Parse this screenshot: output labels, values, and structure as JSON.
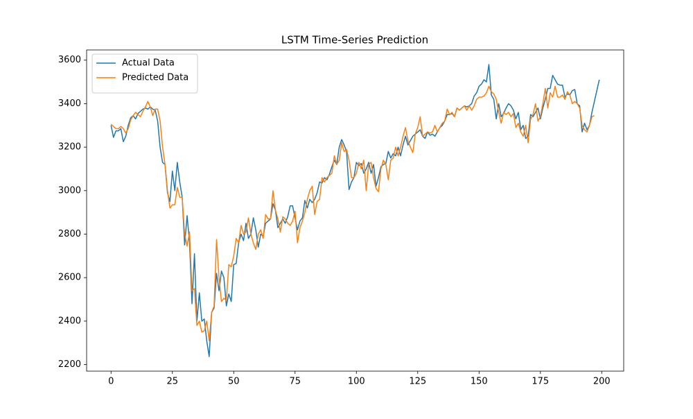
{
  "chart_data": {
    "type": "line",
    "title": "LSTM Time-Series Prediction",
    "x": [
      0,
      1,
      2,
      3,
      4,
      5,
      6,
      7,
      8,
      9,
      10,
      11,
      12,
      13,
      14,
      15,
      16,
      17,
      18,
      19,
      20,
      21,
      22,
      23,
      24,
      25,
      26,
      27,
      28,
      29,
      30,
      31,
      32,
      33,
      34,
      35,
      36,
      37,
      38,
      39,
      40,
      41,
      42,
      43,
      44,
      45,
      46,
      47,
      48,
      49,
      50,
      51,
      52,
      53,
      54,
      55,
      56,
      57,
      58,
      59,
      60,
      61,
      62,
      63,
      64,
      65,
      66,
      67,
      68,
      69,
      70,
      71,
      72,
      73,
      74,
      75,
      76,
      77,
      78,
      79,
      80,
      81,
      82,
      83,
      84,
      85,
      86,
      87,
      88,
      89,
      90,
      91,
      92,
      93,
      94,
      95,
      96,
      97,
      98,
      99,
      100,
      101,
      102,
      103,
      104,
      105,
      106,
      107,
      108,
      109,
      110,
      111,
      112,
      113,
      114,
      115,
      116,
      117,
      118,
      119,
      120,
      121,
      122,
      123,
      124,
      125,
      126,
      127,
      128,
      129,
      130,
      131,
      132,
      133,
      134,
      135,
      136,
      137,
      138,
      139,
      140,
      141,
      142,
      143,
      144,
      145,
      146,
      147,
      148,
      149,
      150,
      151,
      152,
      153,
      154,
      155,
      156,
      157,
      158,
      159,
      160,
      161,
      162,
      163,
      164,
      165,
      166,
      167,
      168,
      169,
      170,
      171,
      172,
      173,
      174,
      175,
      176,
      177,
      178,
      179,
      180,
      181,
      182,
      183,
      184,
      185,
      186,
      187,
      188,
      189,
      190,
      191,
      192,
      193,
      194,
      195,
      196,
      197,
      198,
      199
    ],
    "series": [
      {
        "name": "Actual Data",
        "color": "#1f77b4",
        "values": [
          3300,
          3245,
          3275,
          3275,
          3285,
          3225,
          3250,
          3300,
          3335,
          3345,
          3330,
          3355,
          3365,
          3375,
          3380,
          3375,
          3385,
          3375,
          3370,
          3320,
          3200,
          3130,
          3120,
          2990,
          2950,
          3090,
          3000,
          3130,
          3040,
          2970,
          2750,
          2885,
          2760,
          2480,
          2710,
          2400,
          2530,
          2400,
          2410,
          2310,
          2237,
          2440,
          2460,
          2620,
          2540,
          2630,
          2600,
          2470,
          2525,
          2490,
          2660,
          2665,
          2760,
          2800,
          2770,
          2850,
          2780,
          2800,
          2875,
          2820,
          2740,
          2800,
          2790,
          2850,
          2860,
          2870,
          2940,
          2910,
          2830,
          2850,
          2870,
          2850,
          2880,
          2930,
          2930,
          2875,
          2820,
          2860,
          2875,
          2955,
          2920,
          2960,
          2945,
          2960,
          2990,
          3040,
          3035,
          3060,
          3050,
          3075,
          3110,
          3140,
          3120,
          3200,
          3235,
          3210,
          3180,
          3005,
          3040,
          3060,
          3130,
          3115,
          3125,
          3080,
          3100,
          3130,
          3080,
          3120,
          3020,
          3060,
          3110,
          3120,
          3125,
          3180,
          3150,
          3170,
          3160,
          3200,
          3160,
          3210,
          3250,
          3210,
          3230,
          3250,
          3260,
          3270,
          3280,
          3250,
          3240,
          3270,
          3255,
          3260,
          3250,
          3270,
          3290,
          3300,
          3320,
          3350,
          3350,
          3355,
          3340,
          3380,
          3370,
          3380,
          3390,
          3385,
          3390,
          3400,
          3435,
          3450,
          3480,
          3490,
          3510,
          3500,
          3580,
          3440,
          3420,
          3330,
          3400,
          3340,
          3355,
          3380,
          3400,
          3390,
          3370,
          3330,
          3360,
          3280,
          3300,
          3240,
          3250,
          3350,
          3340,
          3360,
          3380,
          3330,
          3380,
          3420,
          3470,
          3470,
          3530,
          3510,
          3490,
          3485,
          3485,
          3430,
          3445,
          3440,
          3460,
          3465,
          3400,
          3390,
          3270,
          3310,
          3280,
          3300,
          3360,
          3410,
          3460,
          3510
        ]
      },
      {
        "name": "Predicted Data",
        "color": "#ff7f0e",
        "values": [
          3305,
          3295,
          3285,
          3285,
          3295,
          3285,
          3265,
          3285,
          3325,
          3345,
          3360,
          3350,
          3340,
          3365,
          3385,
          3410,
          3385,
          3345,
          3375,
          3375,
          3320,
          3200,
          3120,
          3000,
          2920,
          2935,
          2935,
          3015,
          2970,
          2970,
          2800,
          2745,
          2810,
          2540,
          2550,
          2380,
          2400,
          2350,
          2355,
          2400,
          2310,
          2440,
          2470,
          2775,
          2600,
          2490,
          2505,
          2495,
          2660,
          2650,
          2700,
          2780,
          2760,
          2840,
          2800,
          2810,
          2875,
          2800,
          2760,
          2730,
          2800,
          2820,
          2780,
          2890,
          2870,
          2870,
          3000,
          2910,
          2870,
          2810,
          2880,
          2870,
          2850,
          2840,
          2860,
          2905,
          2760,
          2830,
          2860,
          2900,
          2960,
          3000,
          3020,
          2890,
          2950,
          2960,
          3060,
          3040,
          3060,
          3070,
          3080,
          3160,
          3120,
          3140,
          3220,
          3180,
          3190,
          3140,
          3060,
          3060,
          3080,
          3130,
          3100,
          3140,
          3000,
          3120,
          3130,
          3060,
          3010,
          2995,
          3100,
          3140,
          3120,
          3050,
          3140,
          3150,
          3200,
          3160,
          3200,
          3250,
          3290,
          3230,
          3200,
          3175,
          3260,
          3290,
          3340,
          3250,
          3260,
          3270,
          3265,
          3270,
          3300,
          3270,
          3290,
          3310,
          3320,
          3375,
          3350,
          3360,
          3340,
          3380,
          3370,
          3380,
          3390,
          3370,
          3390,
          3370,
          3390,
          3420,
          3430,
          3430,
          3435,
          3450,
          3480,
          3455,
          3445,
          3420,
          3360,
          3310,
          3360,
          3350,
          3360,
          3340,
          3355,
          3290,
          3310,
          3270,
          3250,
          3300,
          3220,
          3330,
          3350,
          3400,
          3320,
          3340,
          3400,
          3470,
          3380,
          3450,
          3430,
          3480,
          3430,
          3430,
          3440,
          3420,
          3455,
          3440,
          3400,
          3410,
          3400,
          3380,
          3300,
          3280,
          3270,
          3300,
          3340,
          3345,
          null,
          null
        ]
      }
    ],
    "xlim": [
      -9.95,
      208.95
    ],
    "xticks": [
      0,
      25,
      50,
      75,
      100,
      125,
      150,
      175,
      200
    ],
    "ylim": [
      2170,
      3647
    ],
    "yticks": [
      2200,
      2400,
      2600,
      2800,
      3000,
      3200,
      3400,
      3600
    ],
    "grid": false,
    "legend": "upper-left"
  }
}
